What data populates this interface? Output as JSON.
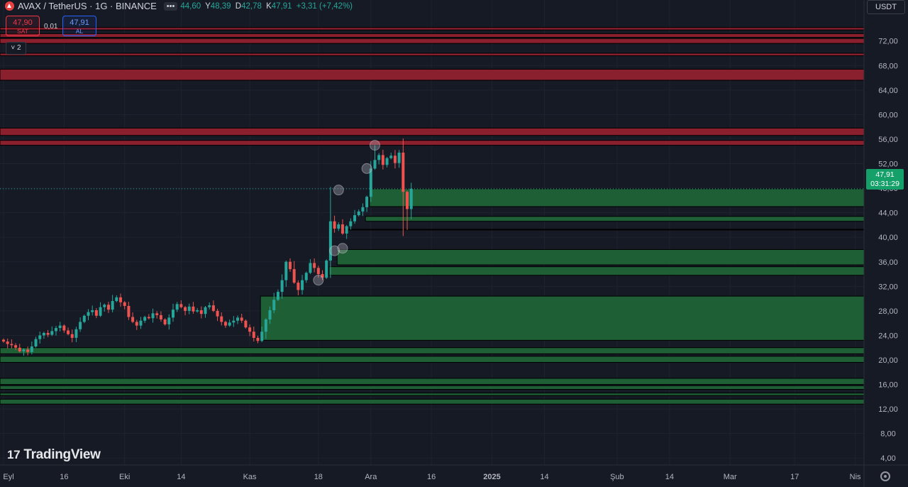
{
  "header": {
    "symbol": "AVAX / TetherUS · 1G · BINANCE",
    "ohlc": [
      {
        "k": "",
        "v": "44,60"
      },
      {
        "k": "Y",
        "v": "48,39"
      },
      {
        "k": "D",
        "v": "42,78"
      },
      {
        "k": "K",
        "v": "47,91"
      },
      {
        "k": "",
        "v": "+3,31 (+7,42%)"
      }
    ],
    "menu_dots": "•••"
  },
  "trade": {
    "sell_price": "47,90",
    "sell_label": "SAT",
    "spread": "0,01",
    "buy_price": "47,91",
    "buy_label": "AL"
  },
  "indicators": {
    "collapse_label": "˅ 2"
  },
  "currency": "USDT",
  "watermark": {
    "mark": "17",
    "text": "TradingView"
  },
  "last_price": {
    "value": "47,91",
    "countdown": "03:31:29"
  },
  "colors": {
    "background": "#161a25",
    "up": "#26a69a",
    "down": "#ef5350",
    "zone_green": "#1e5f35",
    "zone_red": "#8a1f2e",
    "axis_text": "#b2b5be"
  },
  "chart_data": {
    "type": "candlestick",
    "title": "AVAX / TetherUS · 1G · BINANCE",
    "ylim": [
      0,
      76
    ],
    "y_ticks": [
      4,
      8,
      12,
      16,
      20,
      24,
      28,
      32,
      36,
      40,
      44,
      48,
      52,
      56,
      60,
      64,
      68,
      72
    ],
    "y_tick_labels": [
      "4,00",
      "8,00",
      "12,00",
      "16,00",
      "20,00",
      "24,00",
      "28,00",
      "32,00",
      "36,00",
      "40,00",
      "44,00",
      "48,00",
      "52,00",
      "56,00",
      "60,00",
      "64,00",
      "68,00",
      "72,00"
    ],
    "x_ticks": [
      {
        "label": "Eyl",
        "bar": 0
      },
      {
        "label": "16",
        "bar": 15
      },
      {
        "label": "Eki",
        "bar": 30
      },
      {
        "label": "14",
        "bar": 44
      },
      {
        "label": "Kas",
        "bar": 61
      },
      {
        "label": "18",
        "bar": 78
      },
      {
        "label": "Ara",
        "bar": 91
      },
      {
        "label": "16",
        "bar": 106
      },
      {
        "label": "2025",
        "bar": 121
      },
      {
        "label": "14",
        "bar": 134
      },
      {
        "label": "Şub",
        "bar": 152
      },
      {
        "label": "14",
        "bar": 165
      },
      {
        "label": "Mar",
        "bar": 180
      },
      {
        "label": "17",
        "bar": 196
      },
      {
        "label": "Nis",
        "bar": 211
      }
    ],
    "closes": [
      23.0,
      22.6,
      22.4,
      22.0,
      21.4,
      21.7,
      21.3,
      22.2,
      23.4,
      24.0,
      24.4,
      24.1,
      24.7,
      25.2,
      25.6,
      24.8,
      24.2,
      23.6,
      25.0,
      26.2,
      27.2,
      27.8,
      28.1,
      27.2,
      28.6,
      29.0,
      28.2,
      29.6,
      30.2,
      29.4,
      28.8,
      27.0,
      26.2,
      25.6,
      26.4,
      27.0,
      26.8,
      27.6,
      27.3,
      26.6,
      25.8,
      26.9,
      28.2,
      29.1,
      28.6,
      28.0,
      28.7,
      27.9,
      28.1,
      27.5,
      28.6,
      28.9,
      28.0,
      27.1,
      26.2,
      25.6,
      26.1,
      26.4,
      26.9,
      26.4,
      25.3,
      24.6,
      23.6,
      23.1,
      24.6,
      26.6,
      28.1,
      29.8,
      31.1,
      33.0,
      36.0,
      34.8,
      32.6,
      31.4,
      33.0,
      34.2,
      35.8,
      35.0,
      34.0,
      33.4,
      36.2,
      42.6,
      41.4,
      42.1,
      40.6,
      41.8,
      42.6,
      43.6,
      44.2,
      44.9,
      46.6,
      51.2,
      52.6,
      53.4,
      51.8,
      52.9,
      53.3,
      52.1,
      53.8,
      47.4,
      44.6,
      47.91
    ],
    "zones": [
      {
        "type": "resistance",
        "from": 73.8,
        "to": 74.2
      },
      {
        "type": "resistance",
        "from": 72.6,
        "to": 73.2
      },
      {
        "type": "resistance",
        "from": 71.6,
        "to": 72.4
      },
      {
        "type": "resistance",
        "from": 69.6,
        "to": 70.0
      },
      {
        "type": "resistance",
        "from": 65.6,
        "to": 67.4
      },
      {
        "type": "resistance",
        "from": 56.6,
        "to": 57.8
      },
      {
        "type": "resistance",
        "from": 55.0,
        "to": 55.8
      },
      {
        "type": "support",
        "from": 45.0,
        "to": 47.9,
        "start_bar": 91
      },
      {
        "type": "support",
        "from": 42.6,
        "to": 43.4,
        "start_bar": 90
      },
      {
        "type": "support",
        "from": 41.2,
        "to": 41.3,
        "start_bar": 84
      },
      {
        "type": "support",
        "from": 35.5,
        "to": 38.0,
        "start_bar": 83
      },
      {
        "type": "support",
        "from": 33.8,
        "to": 35.2,
        "start_bar": 81
      },
      {
        "type": "support",
        "from": 23.2,
        "to": 30.4,
        "start_bar": 64
      },
      {
        "type": "support",
        "from": 21.0,
        "to": 22.0,
        "start_bar": 0
      },
      {
        "type": "support",
        "from": 19.6,
        "to": 20.6,
        "start_bar": 0
      },
      {
        "type": "support",
        "from": 16.0,
        "to": 17.0,
        "start_bar": 0
      },
      {
        "type": "support",
        "from": 15.2,
        "to": 15.8,
        "start_bar": 0
      },
      {
        "type": "support",
        "from": 14.2,
        "to": 14.6,
        "start_bar": 0
      },
      {
        "type": "support",
        "from": 12.8,
        "to": 13.6,
        "start_bar": 0
      }
    ],
    "markers": [
      {
        "bar": 78,
        "price": 33.0
      },
      {
        "bar": 82,
        "price": 37.8
      },
      {
        "bar": 84,
        "price": 38.2
      },
      {
        "bar": 83,
        "price": 47.7
      },
      {
        "bar": 90,
        "price": 51.2
      },
      {
        "bar": 92,
        "price": 55.0
      }
    ],
    "last_price": 47.91
  }
}
